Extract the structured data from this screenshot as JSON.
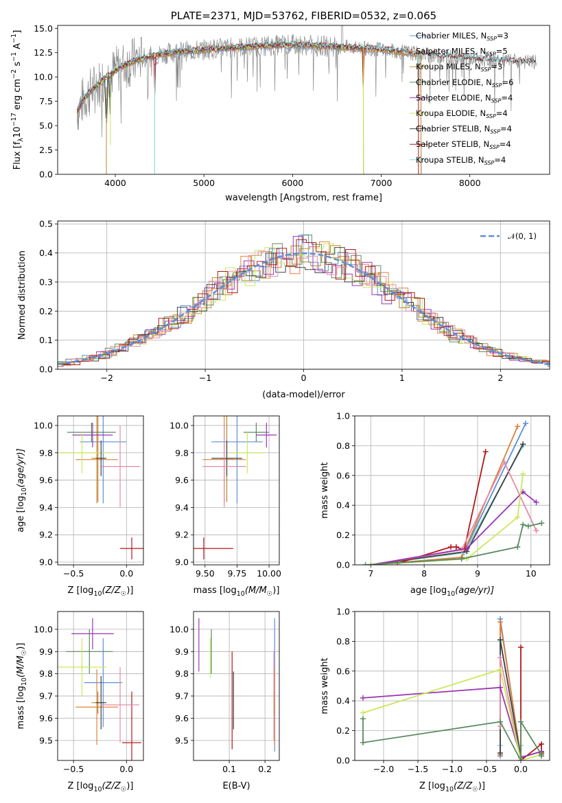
{
  "colors": {
    "chabrier_miles": "#5b8ed6",
    "salpeter_miles": "#e0803a",
    "kroupa_miles": "#b08a2e",
    "chabrier_elodie": "#5a8a60",
    "salpeter_elodie": "#9b34b5",
    "kroupa_elodie": "#c9e85a",
    "chabrier_stelib": "#404040",
    "salpeter_stelib": "#b01818",
    "kroupa_stelib": "#7fd8de",
    "pink": "#e58aa6",
    "gaussian": "#5b8ed6",
    "grid": "#b0b0b0"
  },
  "chart_data": [
    {
      "id": "spectrum",
      "type": "line",
      "title": "PLATE=2371, MJD=53762, FIBERID=0532, z=0.065",
      "xlabel": "wavelength [Angstrom, rest frame]",
      "ylabel_parts": [
        "Flux [f",
        "λ",
        "10",
        "−17",
        " erg cm",
        "−2",
        " s",
        "−1",
        " A",
        "−1",
        "]"
      ],
      "xlim": [
        3350,
        8900
      ],
      "ylim": [
        0,
        15.3
      ],
      "x_ticks": [
        4000,
        5000,
        6000,
        7000,
        8000
      ],
      "x_tick_labels": [
        "4000",
        "5000",
        "6000",
        "7000",
        "8000"
      ],
      "y_ticks": [
        0,
        2.5,
        5.0,
        7.5,
        10.0,
        12.5,
        15.0
      ],
      "y_tick_labels": [
        "0.0",
        "2.5",
        "5.0",
        "7.5",
        "10.0",
        "12.5",
        "15.0"
      ],
      "grid": false,
      "legend_position": "top-right",
      "observed_envelope": {
        "x": [
          3570,
          3650,
          3750,
          3850,
          3950,
          4050,
          4150,
          4250,
          4350,
          4500,
          4700,
          4900,
          5100,
          5300,
          5500,
          5700,
          5900,
          6100,
          6300,
          6500,
          6700,
          6900,
          7100,
          7300,
          7500,
          7700,
          7900,
          8100,
          8300,
          8500,
          8750
        ],
        "y": [
          6.5,
          7.8,
          8.8,
          9.6,
          10.3,
          11.0,
          11.4,
          11.8,
          12.0,
          12.3,
          12.6,
          12.7,
          12.9,
          13.0,
          13.1,
          13.2,
          13.3,
          13.3,
          13.2,
          13.1,
          13.0,
          12.9,
          12.7,
          12.5,
          12.3,
          12.1,
          12.0,
          11.8,
          11.7,
          11.6,
          11.5
        ]
      },
      "series": [
        {
          "name": "Chabrier MILES, N",
          "sub": "SSP",
          "suffix": "=3",
          "color_key": "chabrier_miles",
          "x_end": 7450
        },
        {
          "name": "Salpeter MILES, N",
          "sub": "SSP",
          "suffix": "=5",
          "color_key": "salpeter_miles",
          "x_end": 7450
        },
        {
          "name": "Kroupa MILES, N",
          "sub": "SSP",
          "suffix": "=3",
          "color_key": "kroupa_miles",
          "x_end": 7450
        },
        {
          "name": "Chabrier ELODIE, N",
          "sub": "SSP",
          "suffix": "=6",
          "color_key": "chabrier_elodie",
          "x_end": 6800
        },
        {
          "name": "Salpeter ELODIE, N",
          "sub": "SSP",
          "suffix": "=4",
          "color_key": "salpeter_elodie",
          "x_end": 6800
        },
        {
          "name": "Kroupa ELODIE, N",
          "sub": "SSP",
          "suffix": "=4",
          "color_key": "kroupa_elodie",
          "x_end": 6800
        },
        {
          "name": "Chabrier STELIB, N",
          "sub": "SSP",
          "suffix": "=4",
          "color_key": "chabrier_stelib",
          "x_end": 8750
        },
        {
          "name": "Salpeter STELIB, N",
          "sub": "SSP",
          "suffix": "=4",
          "color_key": "salpeter_stelib",
          "x_end": 8750
        },
        {
          "name": "Kroupa STELIB, N",
          "sub": "SSP",
          "suffix": "=4",
          "color_key": "kroupa_stelib",
          "x_end": 8750
        }
      ],
      "absorption_dips": [
        3900,
        3945,
        4445,
        6800,
        7420
      ]
    },
    {
      "id": "residuals",
      "type": "line",
      "xlabel": "(data-model)/error",
      "ylabel": "Normed distribution",
      "xlim": [
        -2.5,
        2.5
      ],
      "ylim": [
        0,
        0.51
      ],
      "x_ticks": [
        -2,
        -1,
        0,
        1,
        2
      ],
      "x_tick_labels": [
        "−2",
        "−1",
        "0",
        "1",
        "2"
      ],
      "y_ticks": [
        0,
        0.1,
        0.2,
        0.3,
        0.4,
        0.5
      ],
      "y_tick_labels": [
        "0.0",
        "0.1",
        "0.2",
        "0.3",
        "0.4",
        "0.5"
      ],
      "grid": true,
      "legend_position": "top-right",
      "legend_label": "𝒩(0, 1)",
      "bin_width": 0.1,
      "histogram_color_keys": [
        "chabrier_miles",
        "salpeter_miles",
        "kroupa_miles",
        "chabrier_elodie",
        "salpeter_elodie",
        "kroupa_elodie",
        "chabrier_stelib",
        "salpeter_stelib",
        "pink"
      ]
    },
    {
      "id": "age_vs_Z",
      "type": "scatter",
      "xlabel_parts": [
        "Z [log",
        "10",
        "(Z/Z",
        "☉",
        ")]"
      ],
      "ylabel_parts": [
        "age  [log",
        "10",
        "(age/yr)]"
      ],
      "xlim": [
        -0.65,
        0.16
      ],
      "ylim": [
        8.98,
        10.07
      ],
      "x_ticks": [
        -0.5,
        0.0
      ],
      "x_tick_labels": [
        "−0.5",
        "0.0"
      ],
      "y_ticks": [
        9.0,
        9.2,
        9.4,
        9.6,
        9.8,
        10.0
      ],
      "y_tick_labels": [
        "9.0",
        "9.2",
        "9.4",
        "9.6",
        "9.8",
        "10.0"
      ],
      "grid": true,
      "points": [
        {
          "x": -0.22,
          "y": 9.88,
          "xerr": 0.22,
          "yerr": 0.45,
          "color_key": "chabrier_miles"
        },
        {
          "x": -0.28,
          "y": 9.75,
          "xerr": 0.2,
          "yerr": 0.32,
          "color_key": "salpeter_miles"
        },
        {
          "x": -0.27,
          "y": 9.76,
          "xerr": 0.06,
          "yerr": 0.32,
          "color_key": "kroupa_miles"
        },
        {
          "x": -0.33,
          "y": 9.95,
          "xerr": 0.23,
          "yerr": 0.07,
          "color_key": "chabrier_elodie"
        },
        {
          "x": -0.32,
          "y": 9.93,
          "xerr": 0.19,
          "yerr": 0.09,
          "color_key": "salpeter_elodie"
        },
        {
          "x": -0.42,
          "y": 9.8,
          "xerr": 0.25,
          "yerr": 0.15,
          "color_key": "kroupa_elodie"
        },
        {
          "x": -0.24,
          "y": 9.76,
          "xerr": 0.05,
          "yerr": 0.13,
          "color_key": "chabrier_stelib"
        },
        {
          "x": 0.05,
          "y": 9.1,
          "xerr": 0.11,
          "yerr": 0.08,
          "color_key": "salpeter_stelib"
        },
        {
          "x": -0.06,
          "y": 9.7,
          "xerr": 0.19,
          "yerr": 0.3,
          "color_key": "pink"
        }
      ]
    },
    {
      "id": "age_vs_mass",
      "type": "scatter",
      "xlabel_parts": [
        "mass [log",
        "10",
        "(M/M",
        "☉",
        ")]"
      ],
      "xlim": [
        9.41,
        10.08
      ],
      "ylim": [
        8.98,
        10.07
      ],
      "x_ticks": [
        9.5,
        9.75,
        10.0
      ],
      "x_tick_labels": [
        "9.50",
        "9.75",
        "10.00"
      ],
      "y_ticks": [
        9.0,
        9.2,
        9.4,
        9.6,
        9.8,
        10.0
      ],
      "y_tick_labels": [
        "9.0",
        "9.2",
        "9.4",
        "9.6",
        "9.8",
        "10.0"
      ],
      "grid": true,
      "points": [
        {
          "x": 9.75,
          "y": 9.88,
          "xerr": 0.2,
          "yerr": 0.45,
          "color_key": "chabrier_miles"
        },
        {
          "x": 9.65,
          "y": 9.75,
          "xerr": 0.17,
          "yerr": 0.32,
          "color_key": "salpeter_miles"
        },
        {
          "x": 9.67,
          "y": 9.76,
          "xerr": 0.05,
          "yerr": 0.32,
          "color_key": "kroupa_miles"
        },
        {
          "x": 9.9,
          "y": 9.95,
          "xerr": 0.1,
          "yerr": 0.07,
          "color_key": "chabrier_elodie"
        },
        {
          "x": 9.98,
          "y": 9.93,
          "xerr": 0.08,
          "yerr": 0.09,
          "color_key": "salpeter_elodie"
        },
        {
          "x": 9.83,
          "y": 9.8,
          "xerr": 0.13,
          "yerr": 0.15,
          "color_key": "kroupa_elodie"
        },
        {
          "x": 9.67,
          "y": 9.76,
          "xerr": 0.12,
          "yerr": 0.13,
          "color_key": "chabrier_stelib"
        },
        {
          "x": 9.49,
          "y": 9.1,
          "xerr": 0.23,
          "yerr": 0.08,
          "color_key": "salpeter_stelib"
        },
        {
          "x": 9.65,
          "y": 9.7,
          "xerr": 0.17,
          "yerr": 0.3,
          "color_key": "pink"
        }
      ]
    },
    {
      "id": "mass_weight_vs_age",
      "type": "line",
      "xlabel_parts": [
        "age  [log",
        "10",
        "(age/yr)]"
      ],
      "ylabel": "mass weight",
      "xlim": [
        6.7,
        10.35
      ],
      "ylim": [
        0,
        1.0
      ],
      "x_ticks": [
        7,
        8,
        9,
        10
      ],
      "x_tick_labels": [
        "7",
        "8",
        "9",
        "10"
      ],
      "y_ticks": [
        0,
        0.2,
        0.4,
        0.6,
        0.8,
        1.0
      ],
      "y_tick_labels": [
        "0.0",
        "0.2",
        "0.4",
        "0.6",
        "0.8",
        "1.0"
      ],
      "grid": true,
      "series": [
        {
          "color_key": "chabrier_miles",
          "x": [
            7.0,
            8.7,
            9.9
          ],
          "y": [
            0.0,
            0.05,
            0.95
          ]
        },
        {
          "color_key": "salpeter_miles",
          "x": [
            7.0,
            8.7,
            9.75
          ],
          "y": [
            0.0,
            0.05,
            0.93
          ]
        },
        {
          "color_key": "kroupa_stelib",
          "x": [
            7.0,
            8.75,
            9.85
          ],
          "y": [
            0.0,
            0.08,
            0.8
          ]
        },
        {
          "color_key": "chabrier_stelib",
          "x": [
            7.0,
            8.8,
            9.85
          ],
          "y": [
            0.0,
            0.09,
            0.81
          ]
        },
        {
          "color_key": "salpeter_stelib",
          "x": [
            7.5,
            8.5,
            8.6,
            8.75,
            9.15
          ],
          "y": [
            0.01,
            0.12,
            0.12,
            0.1,
            0.76
          ]
        },
        {
          "color_key": "pink",
          "x": [
            7.0,
            8.7,
            9.5,
            10.1
          ],
          "y": [
            0.0,
            0.1,
            0.69,
            0.23
          ]
        },
        {
          "color_key": "salpeter_elodie",
          "x": [
            7.0,
            8.8,
            9.85,
            10.1
          ],
          "y": [
            0.0,
            0.11,
            0.49,
            0.42
          ]
        },
        {
          "color_key": "kroupa_elodie",
          "x": [
            7.0,
            8.8,
            9.75,
            9.85
          ],
          "y": [
            0.0,
            0.04,
            0.32,
            0.61
          ]
        },
        {
          "color_key": "chabrier_elodie",
          "x": [
            6.9,
            8.7,
            9.75,
            9.85,
            9.95,
            10.2
          ],
          "y": [
            0.0,
            0.04,
            0.12,
            0.27,
            0.26,
            0.28
          ]
        }
      ]
    },
    {
      "id": "mass_vs_Z",
      "type": "scatter",
      "xlabel_parts": [
        "Z [log",
        "10",
        "(Z/Z",
        "☉",
        ")]"
      ],
      "ylabel_parts": [
        "mass [log",
        "10",
        "(M/M",
        "☉",
        ")]"
      ],
      "xlim": [
        -0.65,
        0.16
      ],
      "ylim": [
        9.41,
        10.08
      ],
      "x_ticks": [
        -0.5,
        0.0
      ],
      "x_tick_labels": [
        "−0.5",
        "0.0"
      ],
      "y_ticks": [
        9.5,
        9.6,
        9.7,
        9.8,
        9.9,
        10.0
      ],
      "y_tick_labels": [
        "9.5",
        "9.6",
        "9.7",
        "9.8",
        "9.9",
        "10.0"
      ],
      "grid": true,
      "points": [
        {
          "x": -0.22,
          "y": 9.76,
          "xerr": 0.18,
          "yerr": 0.2,
          "color_key": "chabrier_miles"
        },
        {
          "x": -0.28,
          "y": 9.65,
          "xerr": 0.2,
          "yerr": 0.17,
          "color_key": "salpeter_miles"
        },
        {
          "x": -0.27,
          "y": 9.67,
          "xerr": 0.06,
          "yerr": 0.05,
          "color_key": "kroupa_miles"
        },
        {
          "x": -0.35,
          "y": 9.9,
          "xerr": 0.22,
          "yerr": 0.1,
          "color_key": "chabrier_elodie"
        },
        {
          "x": -0.32,
          "y": 9.98,
          "xerr": 0.2,
          "yerr": 0.07,
          "color_key": "salpeter_elodie"
        },
        {
          "x": -0.42,
          "y": 9.83,
          "xerr": 0.23,
          "yerr": 0.13,
          "color_key": "kroupa_elodie"
        },
        {
          "x": -0.24,
          "y": 9.67,
          "xerr": 0.05,
          "yerr": 0.12,
          "color_key": "chabrier_stelib"
        },
        {
          "x": 0.05,
          "y": 9.49,
          "xerr": 0.09,
          "yerr": 0.23,
          "color_key": "salpeter_stelib"
        },
        {
          "x": -0.06,
          "y": 9.66,
          "xerr": 0.18,
          "yerr": 0.17,
          "color_key": "pink"
        }
      ]
    },
    {
      "id": "mass_vs_ebv",
      "type": "scatter",
      "xlabel": "E(B-V)",
      "xlim": [
        0.0,
        0.24
      ],
      "ylim": [
        9.41,
        10.08
      ],
      "x_ticks": [
        0.1,
        0.2
      ],
      "x_tick_labels": [
        "0.1",
        "0.2"
      ],
      "y_ticks": [
        9.5,
        9.6,
        9.7,
        9.8,
        9.9,
        10.0
      ],
      "y_tick_labels": [
        "9.5",
        "9.6",
        "9.7",
        "9.8",
        "9.9",
        "10.0"
      ],
      "grid": true,
      "points": [
        {
          "x": 0.227,
          "y": 9.75,
          "yerr": 0.3,
          "color_key": "chabrier_miles"
        },
        {
          "x": 0.227,
          "y": 9.65,
          "yerr": 0.17,
          "color_key": "salpeter_miles"
        },
        {
          "x": 0.225,
          "y": 9.67,
          "yerr": 0.05,
          "color_key": "kroupa_miles"
        },
        {
          "x": 0.05,
          "y": 9.9,
          "yerr": 0.1,
          "color_key": "chabrier_elodie"
        },
        {
          "x": 0.015,
          "y": 9.93,
          "yerr": 0.12,
          "color_key": "salpeter_elodie"
        },
        {
          "x": 0.047,
          "y": 9.87,
          "yerr": 0.09,
          "color_key": "kroupa_elodie"
        },
        {
          "x": 0.112,
          "y": 9.68,
          "yerr": 0.13,
          "color_key": "chabrier_stelib"
        },
        {
          "x": 0.108,
          "y": 9.68,
          "yerr": 0.22,
          "color_key": "salpeter_stelib"
        },
        {
          "x": 0.225,
          "y": 9.7,
          "yerr": 0.2,
          "color_key": "pink"
        }
      ]
    },
    {
      "id": "mass_weight_vs_Z",
      "type": "line",
      "xlabel_parts": [
        "Z [log",
        "10",
        "(Z/Z",
        "☉",
        ")]"
      ],
      "ylabel": "mass weight",
      "xlim": [
        -2.42,
        0.42
      ],
      "ylim": [
        0,
        1.0
      ],
      "x_ticks": [
        -2.0,
        -1.5,
        -1.0,
        -0.5,
        0.0
      ],
      "x_tick_labels": [
        "−2.0",
        "−1.5",
        "−1.0",
        "−0.5",
        "0.0"
      ],
      "y_ticks": [
        0,
        0.2,
        0.4,
        0.6,
        0.8,
        1.0
      ],
      "y_tick_labels": [
        "0.0",
        "0.2",
        "0.4",
        "0.6",
        "0.8",
        "1.0"
      ],
      "grid": true,
      "series": [
        {
          "color_key": "chabrier_miles",
          "x": [
            -0.3,
            -0.3,
            0.0
          ],
          "y": [
            0.03,
            0.95,
            0.02
          ]
        },
        {
          "color_key": "salpeter_miles",
          "x": [
            -0.3,
            -0.3,
            0.0
          ],
          "y": [
            0.04,
            0.93,
            0.03
          ]
        },
        {
          "color_key": "kroupa_stelib",
          "x": [
            -0.3,
            -0.3,
            0.0,
            0.0
          ],
          "y": [
            0.1,
            0.8,
            0.03,
            0.1
          ]
        },
        {
          "color_key": "chabrier_stelib",
          "x": [
            -0.3,
            -0.3,
            0.0,
            0.3
          ],
          "y": [
            0.05,
            0.81,
            0.02,
            0.06
          ]
        },
        {
          "color_key": "salpeter_stelib",
          "x": [
            0.0,
            0.0,
            0.3,
            0.3
          ],
          "y": [
            0.76,
            0.0,
            0.11,
            0.05
          ]
        },
        {
          "color_key": "pink",
          "x": [
            -0.3,
            -0.3,
            0.0
          ],
          "y": [
            0.23,
            0.69,
            0.0
          ]
        },
        {
          "color_key": "salpeter_elodie",
          "x": [
            -2.3,
            -0.3,
            0.0,
            0.3
          ],
          "y": [
            0.42,
            0.49,
            0.02,
            0.06
          ]
        },
        {
          "color_key": "kroupa_elodie",
          "x": [
            -2.3,
            -0.3,
            0.0,
            0.3
          ],
          "y": [
            0.32,
            0.61,
            0.0,
            0.04
          ]
        },
        {
          "color_key": "chabrier_elodie",
          "x": [
            -2.3,
            -2.3,
            -0.3,
            0.0,
            0.0,
            0.3,
            0.3
          ],
          "y": [
            0.28,
            0.12,
            0.26,
            0.0,
            0.26,
            0.04,
            0.03
          ]
        }
      ]
    }
  ]
}
